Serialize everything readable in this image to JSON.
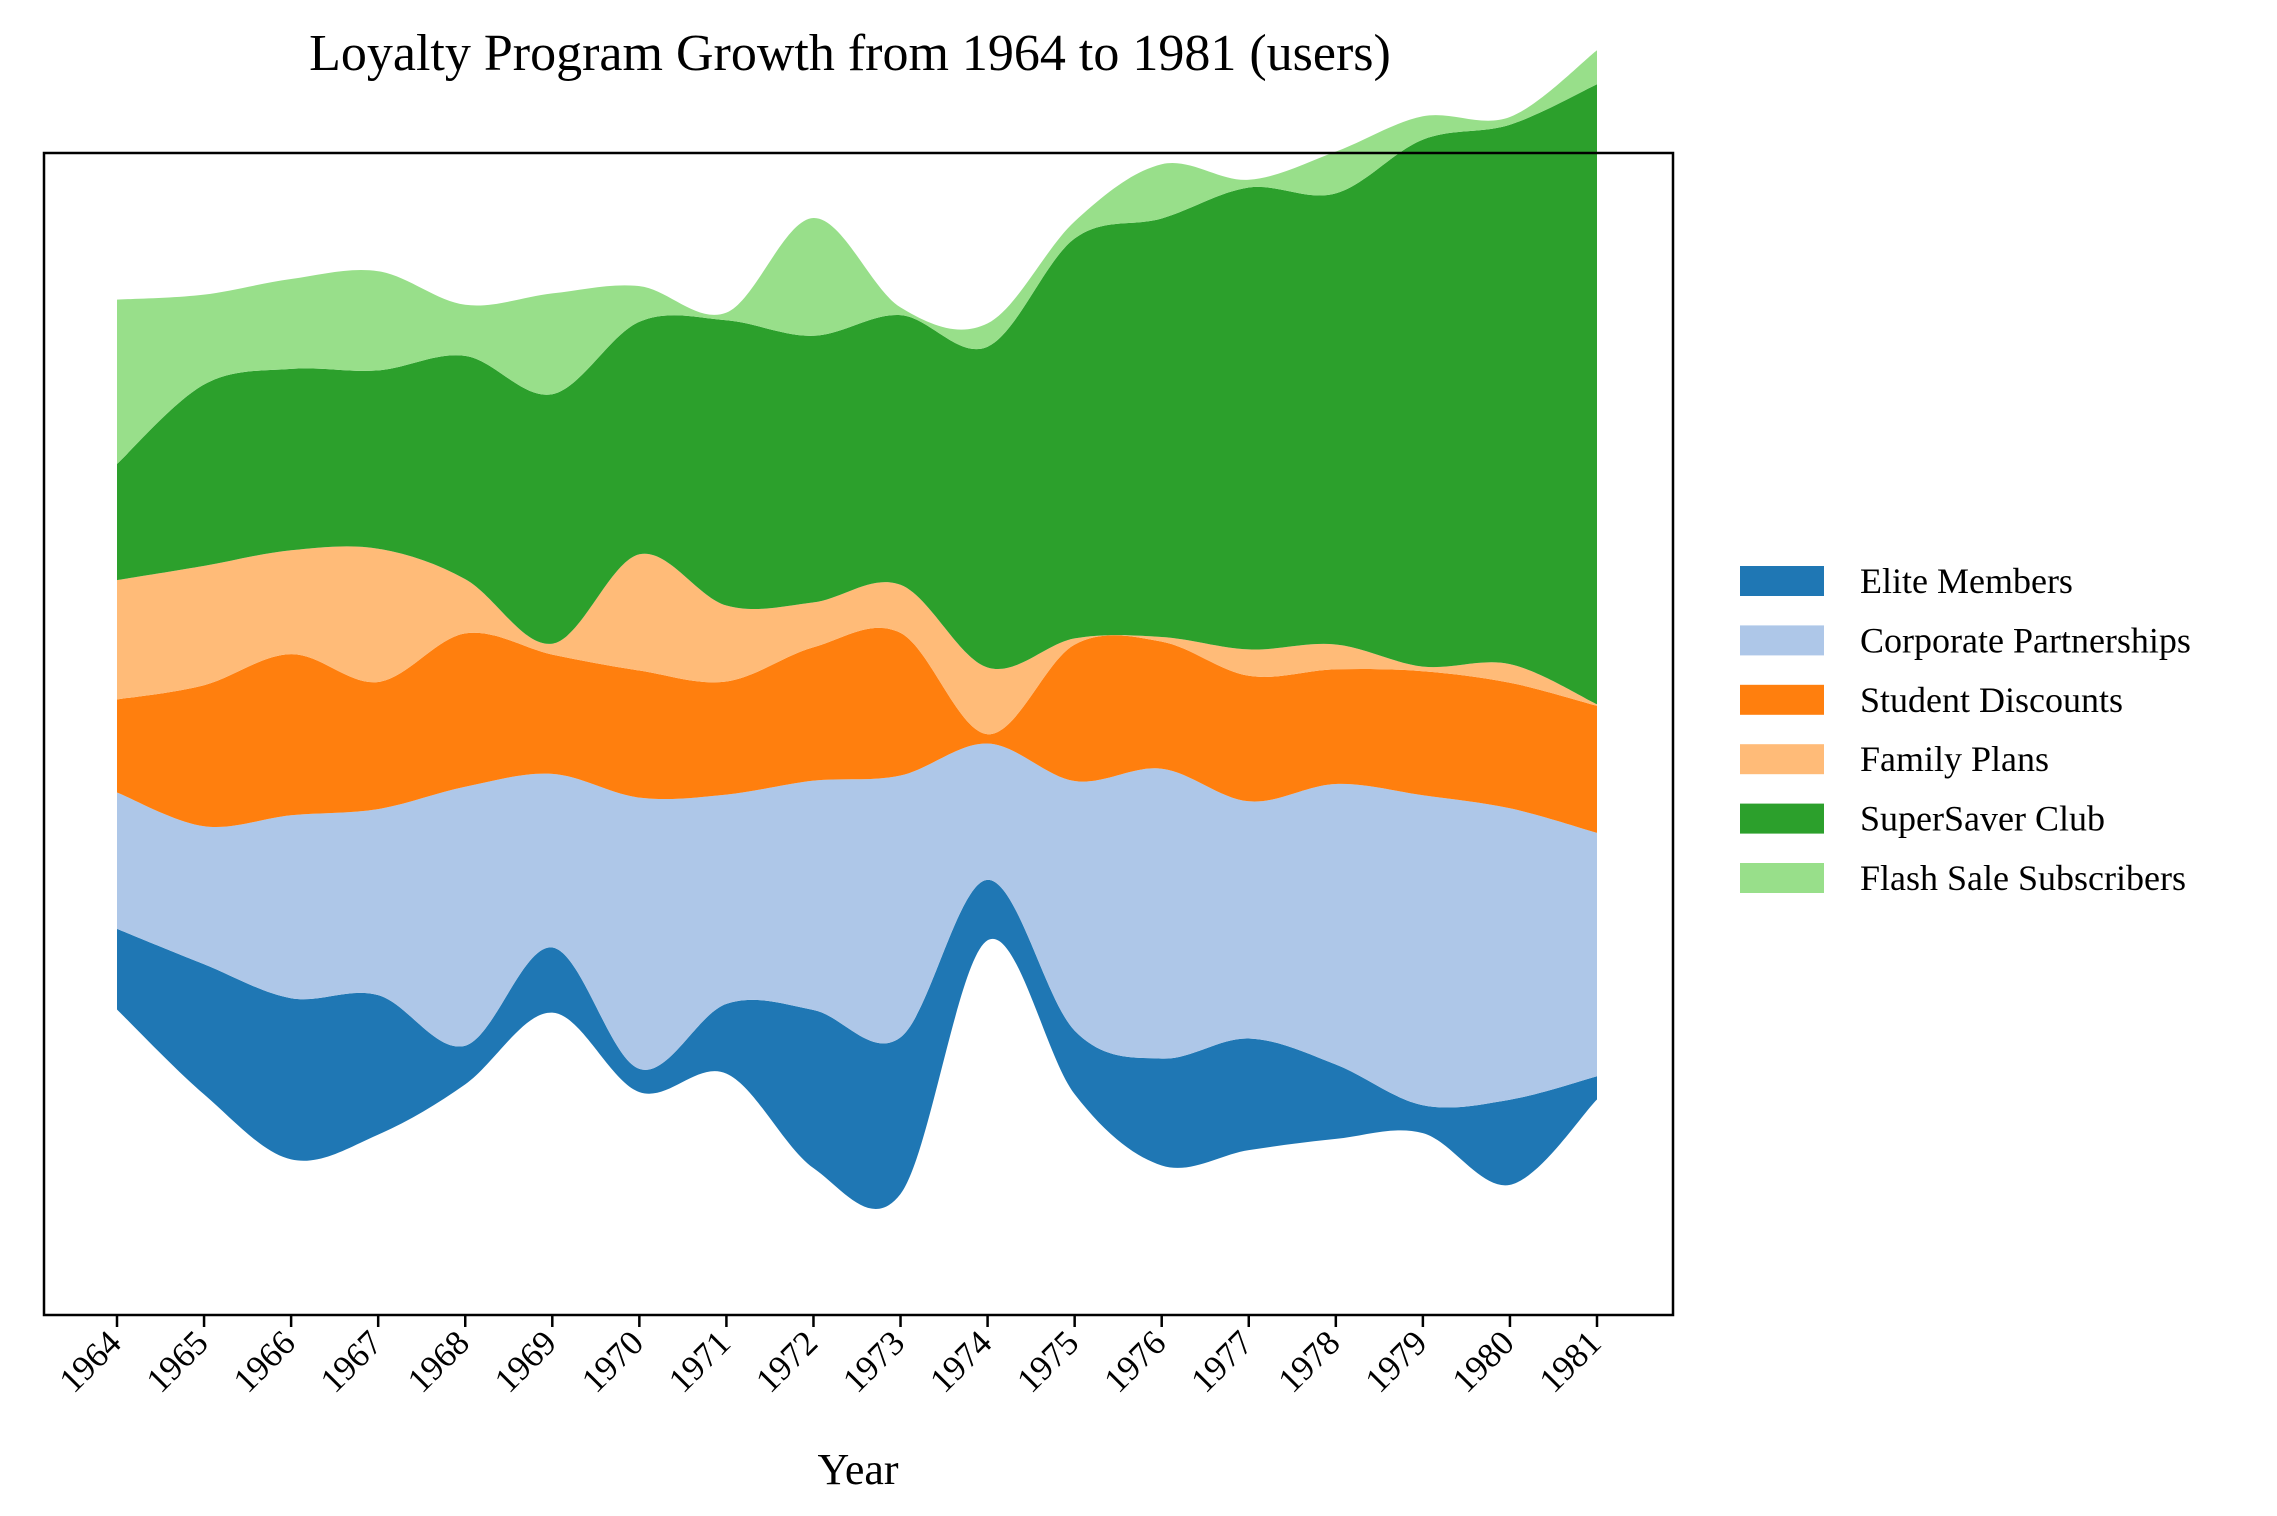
{
  "chart_data": {
    "type": "area",
    "subtype": "streamgraph",
    "title": "Loyalty Program Growth from 1964 to 1981 (users)",
    "xlabel": "Year",
    "ylabel": "",
    "x": [
      "1964",
      "1965",
      "1966",
      "1967",
      "1968",
      "1969",
      "1970",
      "1971",
      "1972",
      "1973",
      "1974",
      "1975",
      "1976",
      "1977",
      "1978",
      "1979",
      "1980",
      "1981"
    ],
    "baseline": "wiggle",
    "yaxis_visible": false,
    "grid": false,
    "legend_position": "right",
    "series": [
      {
        "name": "Elite Members",
        "color": "#1f77b4",
        "values": [
          52,
          84,
          104,
          90,
          25,
          42,
          15,
          45,
          102,
          101,
          39,
          41,
          69,
          72,
          48,
          18,
          55,
          15
        ]
      },
      {
        "name": "Corporate Partnerships",
        "color": "#aec7e8",
        "values": [
          88,
          89,
          118,
          120,
          167,
          112,
          175,
          135,
          148,
          169,
          88,
          161,
          187,
          153,
          181,
          200,
          188,
          157
        ]
      },
      {
        "name": "Student Discounts",
        "color": "#ff7f0e",
        "values": [
          60,
          91,
          104,
          82,
          99,
          77,
          82,
          73,
          86,
          92,
          6,
          88,
          82,
          81,
          74,
          80,
          81,
          82
        ]
      },
      {
        "name": "Family Plans",
        "color": "#ffbb78",
        "values": [
          77,
          77,
          67,
          86,
          35,
          7,
          75,
          49,
          29,
          31,
          43,
          4,
          3,
          17,
          16,
          3,
          12,
          1
        ]
      },
      {
        "name": "SuperSaver Club",
        "color": "#2ca02c",
        "values": [
          75,
          117,
          117,
          115,
          144,
          161,
          150,
          184,
          172,
          174,
          207,
          258,
          270,
          298,
          291,
          340,
          348,
          400
        ]
      },
      {
        "name": "Flash Sale Subscribers",
        "color": "#98df8a",
        "values": [
          106,
          58,
          58,
          64,
          33,
          65,
          23,
          5,
          76,
          5,
          15,
          11,
          35,
          5,
          27,
          15,
          5,
          22
        ]
      }
    ]
  }
}
